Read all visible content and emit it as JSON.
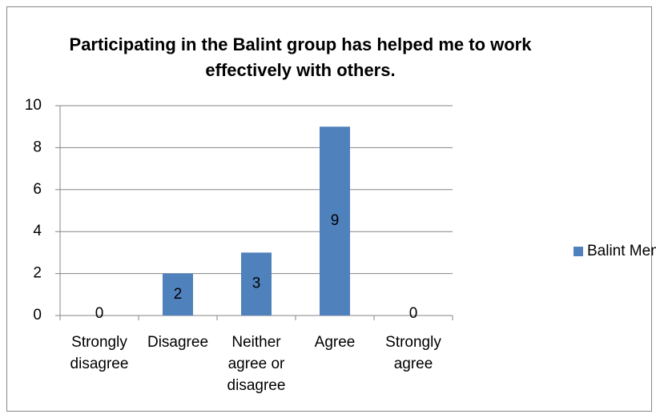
{
  "chart_data": {
    "type": "bar",
    "title": "Participating in the Balint group has helped me to work effectively with others.",
    "categories": [
      "Strongly disagree",
      "Disagree",
      "Neither agree or disagree",
      "Agree",
      "Strongly agree"
    ],
    "series": [
      {
        "name": "Balint Members",
        "color": "#4f81bd",
        "values": [
          0,
          2,
          3,
          9,
          0
        ]
      }
    ],
    "ylim": [
      0,
      10
    ],
    "yticks": [
      0,
      2,
      4,
      6,
      8,
      10
    ],
    "grid": true,
    "legend": "right"
  }
}
